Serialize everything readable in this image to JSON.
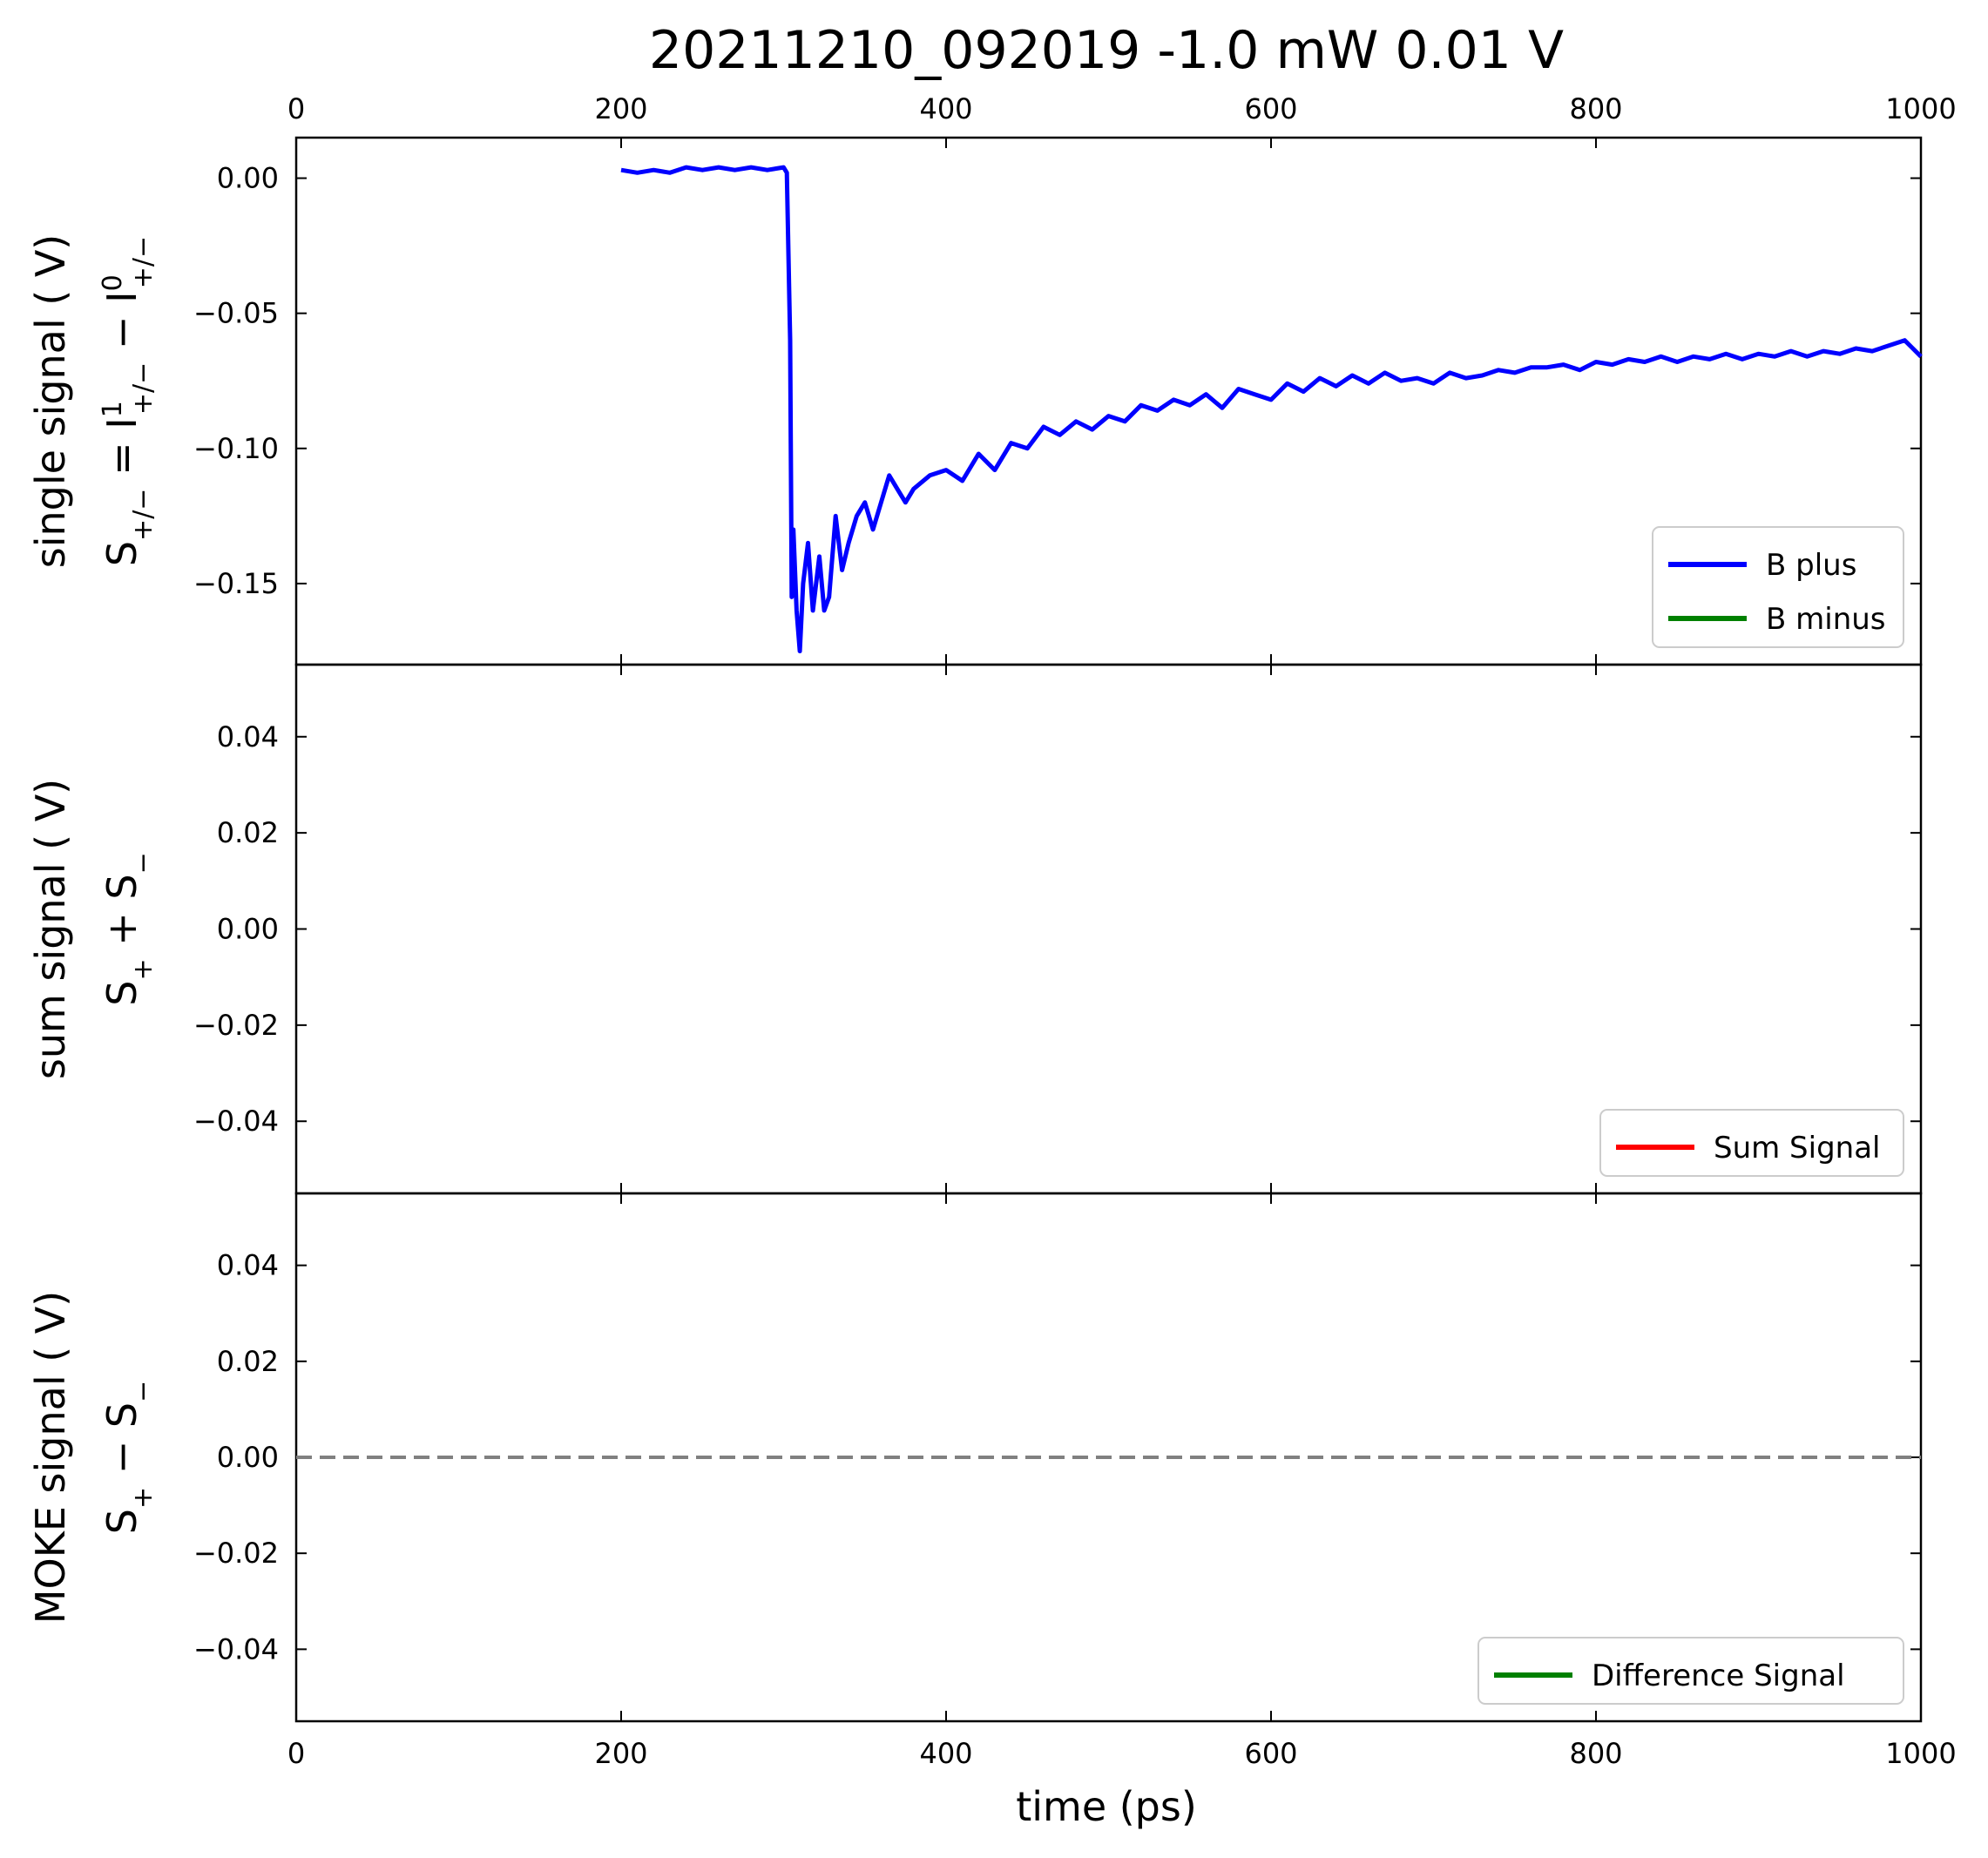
{
  "chart_data": {
    "type": "line",
    "title": "20211210_092019    -1.0 mW    0.01 V",
    "xlabel": "time (ps)",
    "xlim": [
      0,
      1000
    ],
    "xticks": [
      0,
      200,
      400,
      600,
      800,
      1000
    ],
    "xtick_labels": [
      "0",
      "200",
      "400",
      "600",
      "800",
      "1000"
    ],
    "colors": {
      "b_plus": "#0000ff",
      "b_minus": "#008000",
      "sum": "#ff0000",
      "difference": "#008000",
      "zero_line": "#808080"
    },
    "panels": [
      {
        "id": "single",
        "ylabel_line1": "single signal  ( V)",
        "ylabel_line2_parts": [
          "S",
          "+/−",
          " = I",
          "1",
          "+/−",
          " − I",
          "0",
          "+/−"
        ],
        "ylim": [
          -0.18,
          0.015
        ],
        "yticks": [
          0.0,
          -0.05,
          -0.1,
          -0.15
        ],
        "ytick_labels": [
          "0.00",
          "−0.05",
          "−0.10",
          "−0.15"
        ],
        "legend": {
          "placement": "lower-right",
          "entries": [
            "B plus",
            "B minus"
          ]
        },
        "series": [
          {
            "name": "B plus",
            "color": "#0000ff",
            "points": [
              [
                200,
                0.003
              ],
              [
                210,
                0.002
              ],
              [
                220,
                0.003
              ],
              [
                230,
                0.002
              ],
              [
                240,
                0.004
              ],
              [
                250,
                0.003
              ],
              [
                260,
                0.004
              ],
              [
                270,
                0.003
              ],
              [
                280,
                0.004
              ],
              [
                290,
                0.003
              ],
              [
                300,
                0.004
              ],
              [
                302,
                0.002
              ],
              [
                304,
                -0.06
              ],
              [
                305,
                -0.155
              ],
              [
                306,
                -0.13
              ],
              [
                308,
                -0.16
              ],
              [
                310,
                -0.175
              ],
              [
                312,
                -0.15
              ],
              [
                315,
                -0.135
              ],
              [
                318,
                -0.16
              ],
              [
                322,
                -0.14
              ],
              [
                325,
                -0.16
              ],
              [
                328,
                -0.155
              ],
              [
                332,
                -0.125
              ],
              [
                336,
                -0.145
              ],
              [
                340,
                -0.135
              ],
              [
                345,
                -0.125
              ],
              [
                350,
                -0.12
              ],
              [
                355,
                -0.13
              ],
              [
                360,
                -0.12
              ],
              [
                365,
                -0.11
              ],
              [
                370,
                -0.115
              ],
              [
                375,
                -0.12
              ],
              [
                380,
                -0.115
              ],
              [
                390,
                -0.11
              ],
              [
                400,
                -0.108
              ],
              [
                410,
                -0.112
              ],
              [
                420,
                -0.102
              ],
              [
                430,
                -0.108
              ],
              [
                440,
                -0.098
              ],
              [
                450,
                -0.1
              ],
              [
                460,
                -0.092
              ],
              [
                470,
                -0.095
              ],
              [
                480,
                -0.09
              ],
              [
                490,
                -0.093
              ],
              [
                500,
                -0.088
              ],
              [
                510,
                -0.09
              ],
              [
                520,
                -0.084
              ],
              [
                530,
                -0.086
              ],
              [
                540,
                -0.082
              ],
              [
                550,
                -0.084
              ],
              [
                560,
                -0.08
              ],
              [
                570,
                -0.085
              ],
              [
                580,
                -0.078
              ],
              [
                590,
                -0.08
              ],
              [
                600,
                -0.082
              ],
              [
                610,
                -0.076
              ],
              [
                620,
                -0.079
              ],
              [
                630,
                -0.074
              ],
              [
                640,
                -0.077
              ],
              [
                650,
                -0.073
              ],
              [
                660,
                -0.076
              ],
              [
                670,
                -0.072
              ],
              [
                680,
                -0.075
              ],
              [
                690,
                -0.074
              ],
              [
                700,
                -0.076
              ],
              [
                710,
                -0.072
              ],
              [
                720,
                -0.074
              ],
              [
                730,
                -0.073
              ],
              [
                740,
                -0.071
              ],
              [
                750,
                -0.072
              ],
              [
                760,
                -0.07
              ],
              [
                770,
                -0.07
              ],
              [
                780,
                -0.069
              ],
              [
                790,
                -0.071
              ],
              [
                800,
                -0.068
              ],
              [
                810,
                -0.069
              ],
              [
                820,
                -0.067
              ],
              [
                830,
                -0.068
              ],
              [
                840,
                -0.066
              ],
              [
                850,
                -0.068
              ],
              [
                860,
                -0.066
              ],
              [
                870,
                -0.067
              ],
              [
                880,
                -0.065
              ],
              [
                890,
                -0.067
              ],
              [
                900,
                -0.065
              ],
              [
                910,
                -0.066
              ],
              [
                920,
                -0.064
              ],
              [
                930,
                -0.066
              ],
              [
                940,
                -0.064
              ],
              [
                950,
                -0.065
              ],
              [
                960,
                -0.063
              ],
              [
                970,
                -0.064
              ],
              [
                980,
                -0.062
              ],
              [
                990,
                -0.06
              ],
              [
                995,
                -0.063
              ],
              [
                1000,
                -0.066
              ]
            ]
          },
          {
            "name": "B minus",
            "color": "#008000",
            "points": []
          }
        ]
      },
      {
        "id": "sum",
        "ylabel_line1": "sum signal  ( V)",
        "ylabel_line2_parts": [
          "S",
          "+",
          " + S",
          "−"
        ],
        "ylim": [
          -0.055,
          0.055
        ],
        "yticks": [
          0.04,
          0.02,
          0.0,
          -0.02,
          -0.04
        ],
        "ytick_labels": [
          "0.04",
          "0.02",
          "0.00",
          "−0.02",
          "−0.04"
        ],
        "legend": {
          "placement": "lower-right",
          "entries": [
            "Sum Signal"
          ]
        },
        "series": [
          {
            "name": "Sum Signal",
            "color": "#ff0000",
            "points": []
          }
        ]
      },
      {
        "id": "moke",
        "ylabel_line1": "MOKE signal ( V)",
        "ylabel_line2_parts": [
          "S",
          "+",
          " − S",
          "−"
        ],
        "ylim": [
          -0.055,
          0.055
        ],
        "yticks": [
          0.04,
          0.02,
          0.0,
          -0.02,
          -0.04
        ],
        "ytick_labels": [
          "0.04",
          "0.02",
          "0.00",
          "−0.02",
          "−0.04"
        ],
        "legend": {
          "placement": "lower-right",
          "entries": [
            "Difference Signal"
          ]
        },
        "reference_line": {
          "y": 0.0,
          "style": "dashed",
          "color": "#808080"
        },
        "series": [
          {
            "name": "Difference Signal",
            "color": "#008000",
            "points": []
          }
        ]
      }
    ]
  }
}
